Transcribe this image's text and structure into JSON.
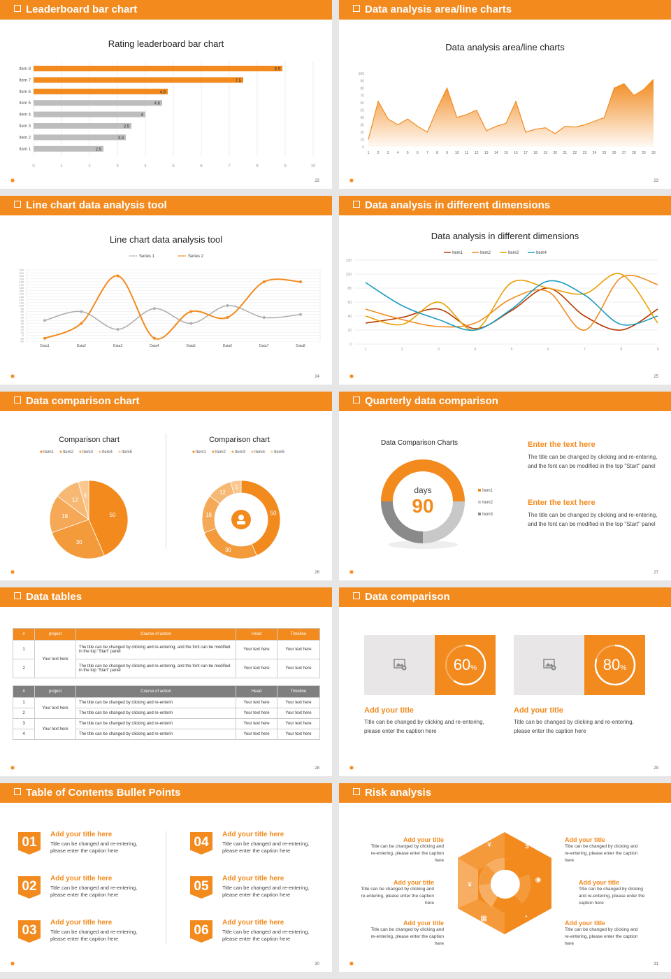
{
  "colors": {
    "accent": "#f28a1e",
    "gray": "#bdbdbd",
    "dark_gray": "#7f7f7f"
  },
  "slides": {
    "s22": {
      "title": "Leaderboard bar chart",
      "chart_title": "Rating leaderboard bar chart",
      "page": "22"
    },
    "s23": {
      "title": "Data analysis area/line charts",
      "chart_title": "Data analysis area/line charts",
      "page": "23"
    },
    "s24": {
      "title": "Line chart data analysis tool",
      "chart_title": "Line chart data analysis tool",
      "page": "24",
      "legend": [
        "Series 1",
        "Series 2"
      ]
    },
    "s25": {
      "title": "Data analysis in different dimensions",
      "chart_title": "Data analysis in different dimensions",
      "page": "25",
      "legend": [
        "Item1",
        "Item2",
        "Item3",
        "Item4"
      ]
    },
    "s26": {
      "title": "Data comparison chart",
      "chart_title_left": "Comparison chart",
      "chart_title_right": "Comparison chart",
      "page": "26",
      "legend": [
        "Item1",
        "Item2",
        "Item3",
        "Item4",
        "Item5"
      ]
    },
    "s27": {
      "title": "Quarterly data comparison",
      "chart_title": "Data Comparison Charts",
      "days_label": "days",
      "days_value": "90",
      "legend": [
        "Item1",
        "Item2",
        "Item3"
      ],
      "page": "27",
      "blocks": [
        {
          "heading": "Enter the text here",
          "body": "The title can be changed by clicking and re-entering, and the font can be modified in the top \"Start\" panel"
        },
        {
          "heading": "Enter the text here",
          "body": "The title can be changed by clicking and re-entering, and the font can be modified in the top \"Start\" panel"
        }
      ]
    },
    "s28": {
      "title": "Data tables",
      "page": "28",
      "table1": {
        "headers": [
          "#",
          "project",
          "Course of action",
          "Head",
          "Timeline"
        ],
        "project": "Your text here",
        "rows": [
          {
            "n": "1",
            "action": "The title can be changed by clicking and re-entering, and the font can be modified in the top \"Start\" panel",
            "head": "Your text here",
            "time": "Your text here"
          },
          {
            "n": "2",
            "action": "The title can be changed by clicking and re-entering, and the font can be modified in the top \"Start\" panel",
            "head": "Your text here",
            "time": "Your text here"
          }
        ]
      },
      "table2": {
        "headers": [
          "#",
          "project",
          "Course of action",
          "Head",
          "Timeline"
        ],
        "project_a": "Your text here",
        "project_b": "Your text here",
        "rows": [
          {
            "n": "1",
            "action": "The title can be changed by clicking and re-enterin",
            "head": "Your text here",
            "time": "Your text here"
          },
          {
            "n": "2",
            "action": "The title can be changed by clicking and re-enterin",
            "head": "Your text here",
            "time": "Your text here"
          },
          {
            "n": "3",
            "action": "The title can be changed by clicking and re-enterin",
            "head": "Your text here",
            "time": "Your text here"
          },
          {
            "n": "4",
            "action": "The title can be changed by clicking and re-enterin",
            "head": "Your text here",
            "time": "Your text here"
          }
        ]
      }
    },
    "s29": {
      "title": "Data comparison",
      "page": "29",
      "cards": [
        {
          "pct": "60",
          "unit": "%",
          "heading": "Add your title",
          "body": "Title can be changed by clicking and re-entering, please enter the caption here"
        },
        {
          "pct": "80",
          "unit": "%",
          "heading": "Add your title",
          "body": "Title can be changed by clicking and re-entering, please enter the caption here"
        }
      ]
    },
    "s30": {
      "title": "Table of Contents Bullet Points",
      "page": "30",
      "items": [
        {
          "num": "01",
          "heading": "Add your title here",
          "body": "Title can be changed and re-entering, please enter the caption here"
        },
        {
          "num": "02",
          "heading": "Add your title here",
          "body": "Title can be changed and re-entering, please enter the caption here"
        },
        {
          "num": "03",
          "heading": "Add your title here",
          "body": "Title can be changed and re-entering, please enter the caption here"
        },
        {
          "num": "04",
          "heading": "Add your title here",
          "body": "Title can be changed and re-entering, please enter the caption here"
        },
        {
          "num": "05",
          "heading": "Add your title here",
          "body": "Title can be changed and re-entering, please enter the caption here"
        },
        {
          "num": "06",
          "heading": "Add your title here",
          "body": "Title can be changed and re-entering, please enter the caption here"
        }
      ]
    },
    "s31": {
      "title": "Risk analysis",
      "page": "31",
      "items": [
        {
          "heading": "Add your title",
          "body": "Title can be changed by clicking and re-entering, please enter the caption here"
        },
        {
          "heading": "Add your title",
          "body": "Title can be changed by clicking and re-entering, please enter the caption here"
        },
        {
          "heading": "Add your title",
          "body": "Title can be changed by clicking and re-entering, please enter the caption here"
        },
        {
          "heading": "Add your title",
          "body": "Title can be changed by clicking and re-entering, please enter the caption here"
        },
        {
          "heading": "Add your title",
          "body": "Title can be changed by clicking and re-entering, please enter the caption here"
        },
        {
          "heading": "Add your title",
          "body": "Title can be changed by clicking and re-entering, please enter the caption here"
        }
      ]
    }
  },
  "chart_data": [
    {
      "type": "bar",
      "orientation": "horizontal",
      "title": "Rating leaderboard bar chart",
      "categories": [
        "Item 1",
        "Item 2",
        "Item 3",
        "Item 4",
        "Item 5",
        "Item 6",
        "Item 7",
        "Item 8"
      ],
      "values": [
        2.5,
        3.3,
        3.5,
        4,
        4.6,
        4.8,
        7.5,
        8.9
      ],
      "value_labels": [
        "2.5",
        "3.3",
        "3.5",
        "4",
        "4.6",
        "4.8",
        "7.5",
        "8.9"
      ],
      "highlight_colors": [
        "#bdbdbd",
        "#bdbdbd",
        "#bdbdbd",
        "#bdbdbd",
        "#bdbdbd",
        "#f28a1e",
        "#f28a1e",
        "#f28a1e"
      ],
      "xlim": [
        0,
        10
      ],
      "xticks": [
        "0",
        "1",
        "2",
        "3",
        "4",
        "5",
        "6",
        "7",
        "8",
        "9",
        "10"
      ]
    },
    {
      "type": "area",
      "title": "Data analysis area/line charts",
      "x": [
        "1",
        "2",
        "3",
        "4",
        "5",
        "6",
        "7",
        "8",
        "9",
        "10",
        "11",
        "12",
        "13",
        "14",
        "15",
        "16",
        "17",
        "18",
        "19",
        "20",
        "21",
        "22",
        "23",
        "24",
        "25",
        "26",
        "27",
        "28",
        "29",
        "30"
      ],
      "values": [
        10,
        62,
        38,
        30,
        38,
        28,
        20,
        52,
        80,
        40,
        44,
        50,
        22,
        28,
        32,
        62,
        20,
        24,
        26,
        18,
        28,
        27,
        30,
        35,
        40,
        80,
        86,
        70,
        78,
        92
      ],
      "ylim": [
        0,
        100
      ],
      "yticks": [
        "0",
        "10",
        "20",
        "30",
        "40",
        "50",
        "60",
        "70",
        "80",
        "90",
        "100"
      ]
    },
    {
      "type": "line",
      "title": "Line chart data analysis tool",
      "categories": [
        "Data1",
        "Data2",
        "Data3",
        "Data4",
        "Data5",
        "Data6",
        "Data7",
        "Data8"
      ],
      "series": [
        {
          "name": "Series 1",
          "values": [
            50,
            80,
            20,
            90,
            40,
            100,
            60,
            70
          ]
        },
        {
          "name": "Series 2",
          "values": [
            -10,
            40,
            200,
            -10,
            80,
            60,
            180,
            180
          ]
        }
      ],
      "ylim": [
        -20,
        220
      ],
      "yticks": [
        "-20",
        "-10",
        "0",
        "10",
        "20",
        "30",
        "40",
        "50",
        "60",
        "70",
        "80",
        "90",
        "100",
        "110",
        "120",
        "130",
        "140",
        "150",
        "160",
        "170",
        "180",
        "190",
        "200",
        "210",
        "220"
      ]
    },
    {
      "type": "line",
      "title": "Data analysis in different dimensions",
      "x": [
        "1",
        "2",
        "3",
        "4",
        "5",
        "6",
        "7",
        "8",
        "9"
      ],
      "series": [
        {
          "name": "Item1",
          "values": [
            30,
            38,
            50,
            22,
            48,
            80,
            40,
            20,
            50
          ]
        },
        {
          "name": "Item2",
          "values": [
            50,
            35,
            25,
            30,
            65,
            75,
            20,
            95,
            85
          ]
        },
        {
          "name": "Item3",
          "values": [
            40,
            28,
            60,
            20,
            88,
            80,
            72,
            100,
            30
          ]
        },
        {
          "name": "Item4",
          "values": [
            88,
            55,
            35,
            20,
            50,
            90,
            70,
            28,
            40
          ]
        }
      ],
      "colors": [
        "#b53a00",
        "#f28a1e",
        "#e8a000",
        "#1a9bc2"
      ],
      "ylim": [
        0,
        120
      ],
      "yticks": [
        "0",
        "20",
        "40",
        "60",
        "80",
        "100",
        "120"
      ]
    },
    {
      "type": "pie",
      "title": "Comparison chart",
      "categories": [
        "Item1",
        "Item2",
        "Item3",
        "Item4",
        "Item5"
      ],
      "values": [
        50,
        30,
        18,
        12,
        5
      ]
    },
    {
      "type": "pie",
      "donut": true,
      "title": "Comparison chart",
      "categories": [
        "Item1",
        "Item2",
        "Item3",
        "Item4",
        "Item5"
      ],
      "values": [
        50,
        30,
        18,
        12,
        5
      ]
    },
    {
      "type": "pie",
      "donut": true,
      "title": "Data Comparison Charts",
      "categories": [
        "Item1",
        "Item2",
        "Item3"
      ],
      "values": [
        50,
        25,
        25
      ]
    }
  ]
}
